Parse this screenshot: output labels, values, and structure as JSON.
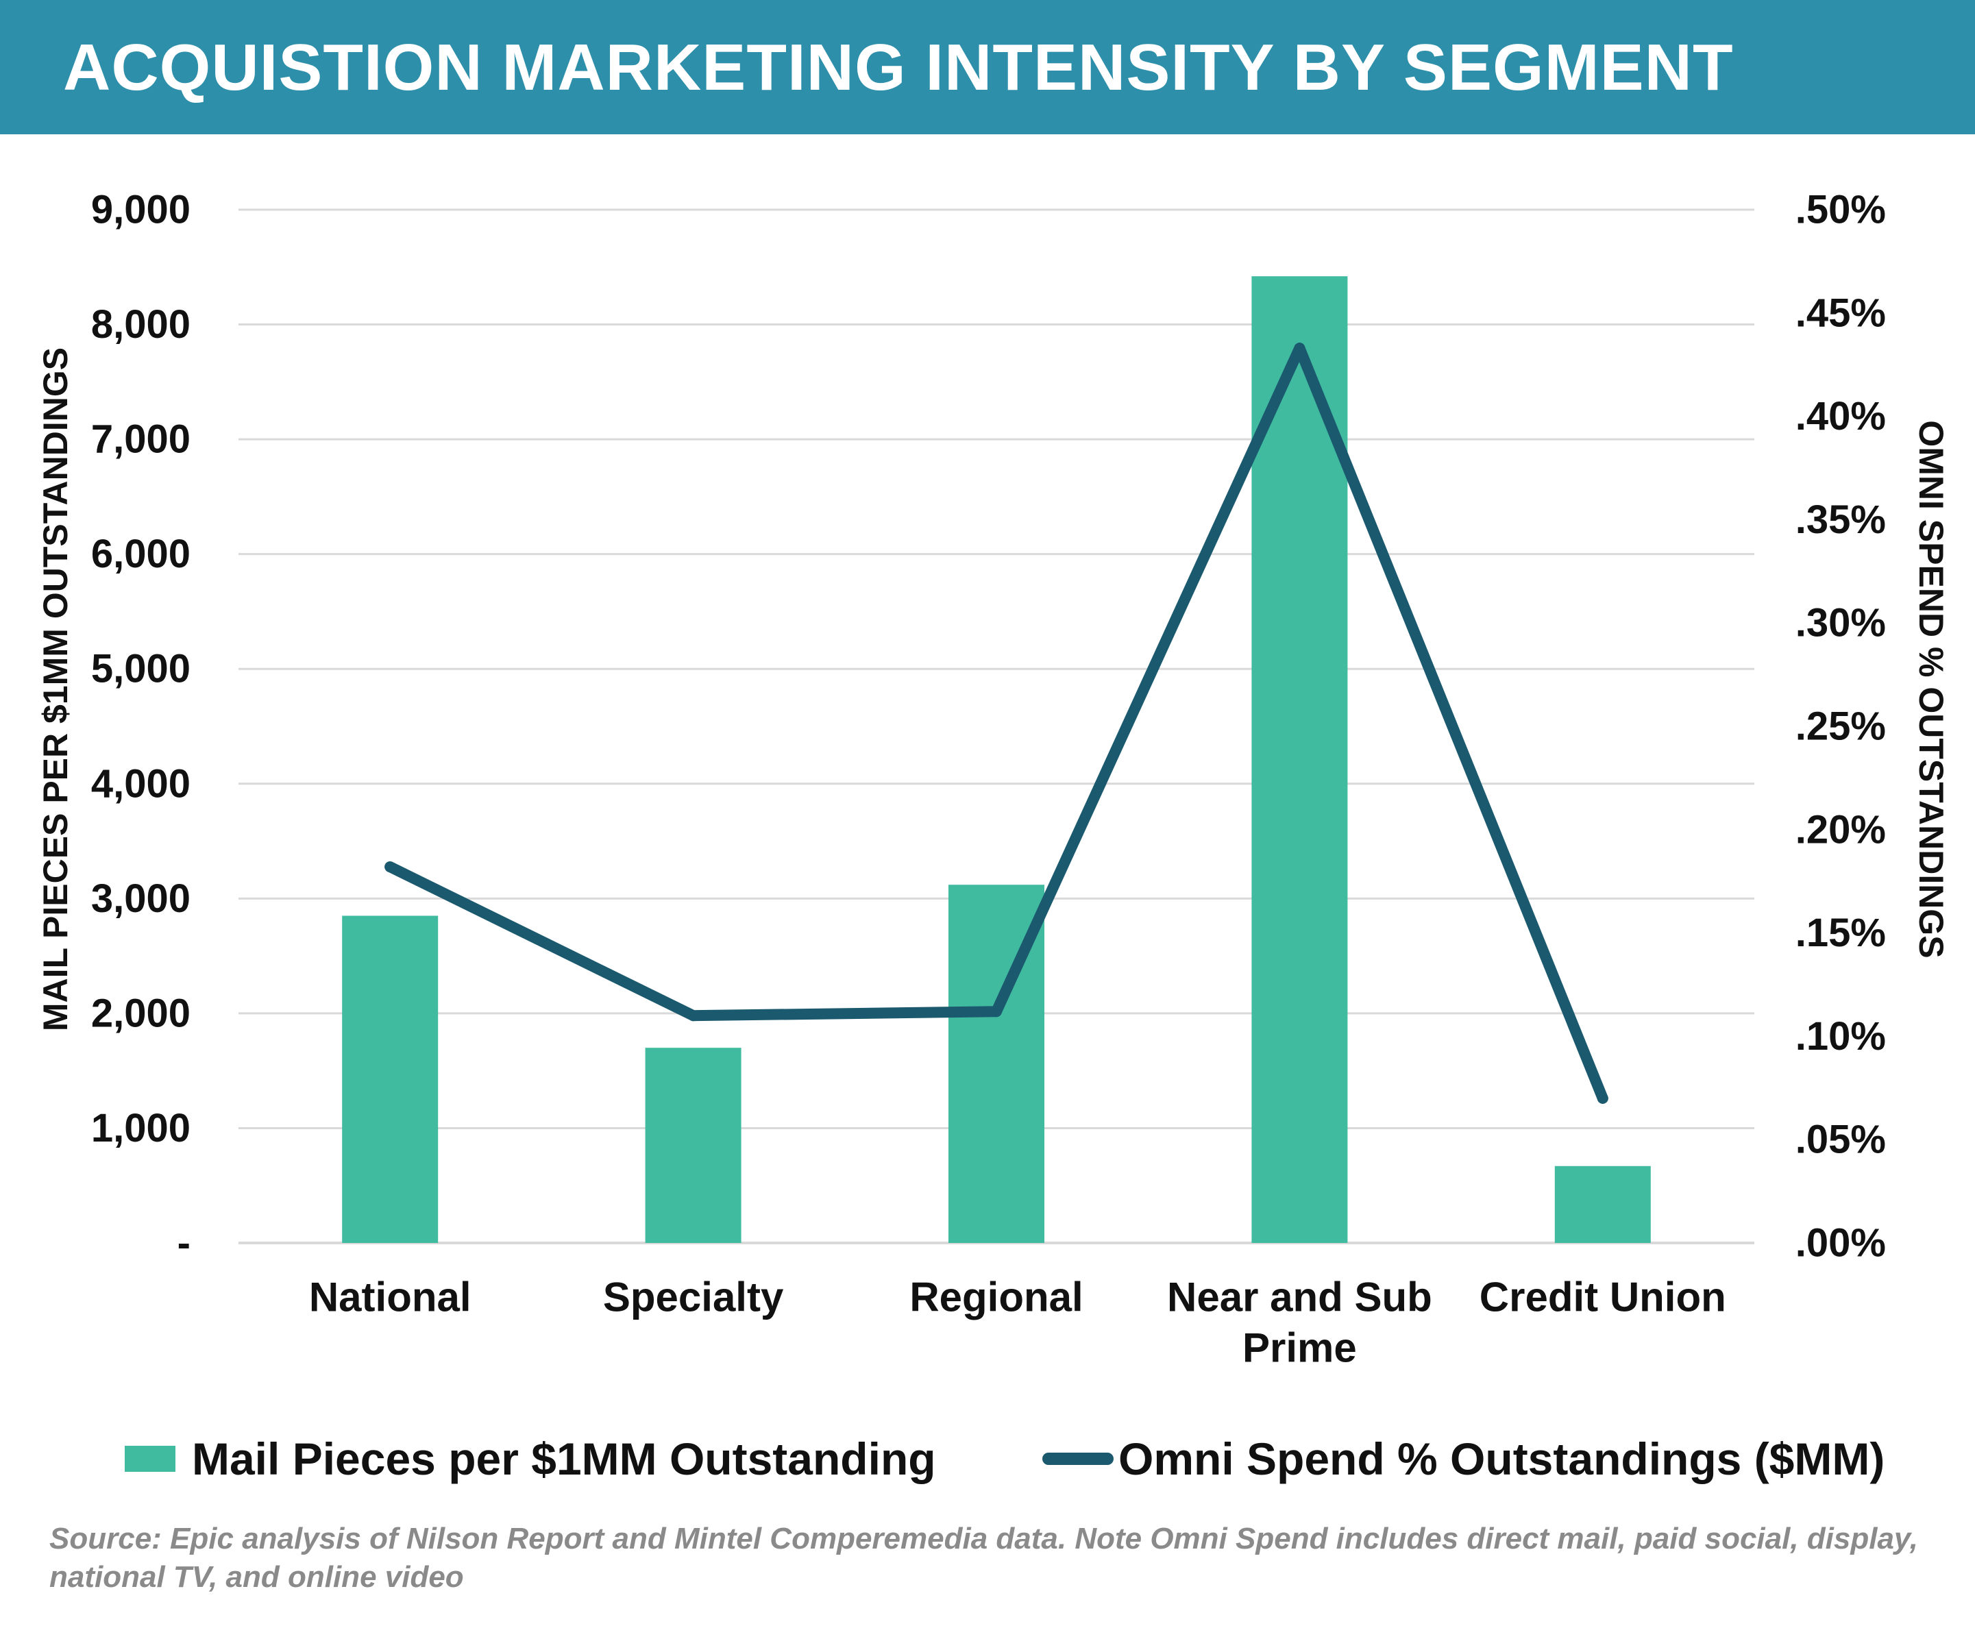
{
  "header": {
    "title": "ACQUISTION MARKETING INTENSITY BY SEGMENT"
  },
  "colors": {
    "banner": "#2e8faa",
    "bar": "#40bba0",
    "line": "#1b5a6e",
    "grid": "#d9d9d9",
    "source_text": "#8a8a8a"
  },
  "chart_data": {
    "type": "bar",
    "title": "ACQUISTION MARKETING INTENSITY BY SEGMENT",
    "categories": [
      "National",
      "Specialty",
      "Regional",
      "Near and Sub Prime",
      "Credit Union"
    ],
    "category_lines": [
      [
        "National"
      ],
      [
        "Specialty"
      ],
      [
        "Regional"
      ],
      [
        "Near and Sub",
        "Prime"
      ],
      [
        "Credit Union"
      ]
    ],
    "series": [
      {
        "name": "Mail Pieces per $1MM Outstanding",
        "type": "bar",
        "axis": "left",
        "values": [
          2850,
          1700,
          3120,
          8420,
          670
        ]
      },
      {
        "name": "Omni Spend % Outstandings ($MM)",
        "type": "line",
        "axis": "right",
        "values": [
          0.182,
          0.11,
          0.112,
          0.433,
          0.07
        ]
      }
    ],
    "ylabel": "MAIL PIECES PER $1MM OUTSTANDINGS",
    "y2label": "OMNI SPEND % OUTSTANDINGS",
    "ylim": [
      0,
      9000
    ],
    "y2lim": [
      0,
      0.5
    ],
    "yticks": [
      0,
      1000,
      2000,
      3000,
      4000,
      5000,
      6000,
      7000,
      8000,
      9000
    ],
    "ytick_labels": [
      "-",
      "1,000",
      "2,000",
      "3,000",
      "4,000",
      "5,000",
      "6,000",
      "7,000",
      "8,000",
      "9,000"
    ],
    "y2ticks": [
      0,
      0.05,
      0.1,
      0.15,
      0.2,
      0.25,
      0.3,
      0.35,
      0.4,
      0.45,
      0.5
    ],
    "y2tick_labels": [
      ".00%",
      ".05%",
      ".10%",
      ".15%",
      ".20%",
      ".25%",
      ".30%",
      ".35%",
      ".40%",
      ".45%",
      ".50%"
    ],
    "grid": true,
    "legend_position": "bottom"
  },
  "footer": {
    "source": "Source: Epic analysis of Nilson Report and Mintel Comperemedia data. Note Omni Spend includes direct mail, paid social, display, national TV, and online video"
  }
}
